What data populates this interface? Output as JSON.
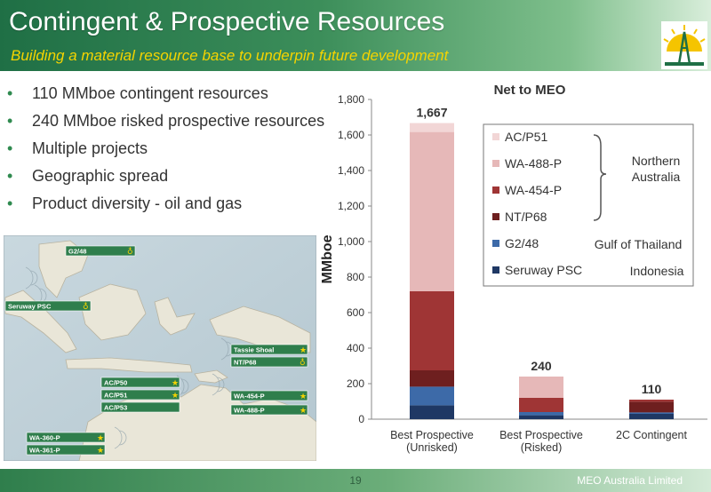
{
  "header": {
    "title": "Contingent & Prospective Resources",
    "subtitle": "Building a material resource base to underpin future development"
  },
  "bullets": [
    "110 MMboe contingent resources",
    "240 MMboe risked prospective resources",
    "Multiple projects",
    "Geographic spread",
    "Product diversity - oil and gas"
  ],
  "map": {
    "labels": [
      "G2/48",
      "Seruway PSC",
      "Tassie Shoal",
      "NT/P68",
      "AC/P50",
      "AC/P51",
      "AC/P53",
      "WA-454-P",
      "WA-488-P",
      "WA-360-P",
      "WA-361-P"
    ]
  },
  "footer": {
    "page": "19",
    "company": "MEO Australia Limited"
  },
  "colors": {
    "Seruway PSC": "#1f3864",
    "G2/48": "#3d6aa8",
    "NT/P68": "#6e1f1f",
    "WA-454-P": "#9f3535",
    "WA-488-P": "#e6b8b8",
    "AC/P51": "#f2d6d6"
  },
  "chart_data": {
    "type": "bar",
    "stacked": true,
    "title": "Net to MEO",
    "ylabel": "MMboe",
    "xlabel": "",
    "ylim": [
      0,
      1800
    ],
    "yticks": [
      0,
      200,
      400,
      600,
      800,
      1000,
      1200,
      1400,
      1600,
      1800
    ],
    "yticklabels": [
      "0",
      "200",
      "400",
      "600",
      "800",
      "1,000",
      "1,200",
      "1,400",
      "1,600",
      "1,800"
    ],
    "categories": [
      "Best Prospective (Unrisked)",
      "Best Prospective (Risked)",
      "2C Contingent"
    ],
    "category_lines": [
      [
        "Best Prospective",
        "(Unrisked)"
      ],
      [
        "Best Prospective",
        "(Risked)"
      ],
      [
        "2C Contingent"
      ]
    ],
    "totals": [
      "1,667",
      "240",
      "110"
    ],
    "series": [
      {
        "name": "Seruway PSC",
        "values": [
          78,
          22,
          30
        ]
      },
      {
        "name": "G2/48",
        "values": [
          105,
          18,
          8
        ]
      },
      {
        "name": "NT/P68",
        "values": [
          92,
          0,
          60
        ]
      },
      {
        "name": "WA-454-P",
        "values": [
          445,
          80,
          12
        ]
      },
      {
        "name": "WA-488-P",
        "values": [
          897,
          120,
          0
        ]
      },
      {
        "name": "AC/P51",
        "values": [
          50,
          0,
          0
        ]
      }
    ],
    "legend_order": [
      "AC/P51",
      "WA-488-P",
      "WA-454-P",
      "NT/P68",
      "G2/48",
      "Seruway PSC"
    ],
    "legend_groups": [
      {
        "label": [
          "Northern",
          "Australia"
        ]
      },
      {
        "label": [
          "Gulf of Thailand"
        ]
      },
      {
        "label": [
          "Indonesia"
        ]
      }
    ],
    "legend_position": "top-right",
    "grid": false
  }
}
